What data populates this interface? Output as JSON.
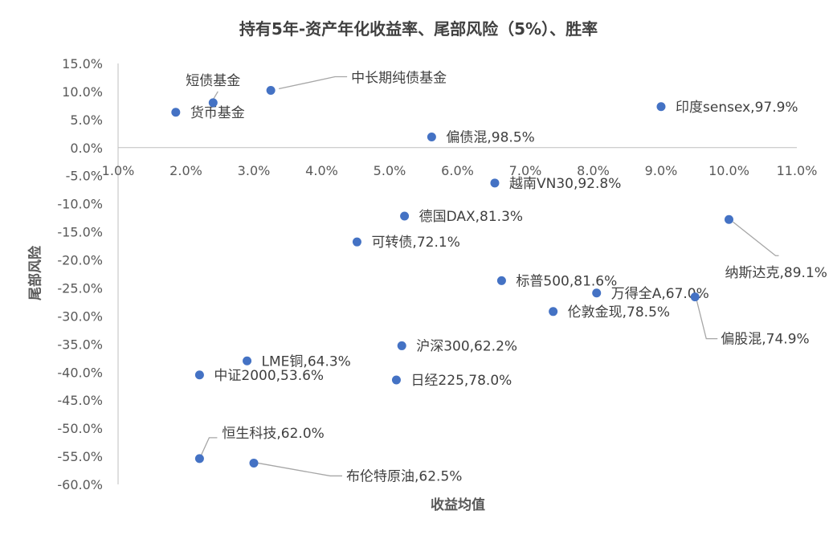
{
  "chart_data": {
    "type": "scatter",
    "title": "持有5年-资产年化收益率、尾部风险（5%）、胜率",
    "xlabel": "收益均值",
    "ylabel": "尾部风险",
    "xlim": [
      0.01,
      0.11
    ],
    "ylim": [
      -0.6,
      0.15
    ],
    "x_ticks": [
      0.01,
      0.02,
      0.03,
      0.04,
      0.05,
      0.06,
      0.07,
      0.08,
      0.09,
      0.1,
      0.11
    ],
    "x_tick_labels": [
      "1.0%",
      "2.0%",
      "3.0%",
      "4.0%",
      "5.0%",
      "6.0%",
      "7.0%",
      "8.0%",
      "9.0%",
      "10.0%",
      "11.0%"
    ],
    "y_ticks": [
      0.15,
      0.1,
      0.05,
      0.0,
      -0.05,
      -0.1,
      -0.15,
      -0.2,
      -0.25,
      -0.3,
      -0.35,
      -0.4,
      -0.45,
      -0.5,
      -0.55,
      -0.6
    ],
    "y_tick_labels": [
      "15.0%",
      "10.0%",
      "5.0%",
      "0.0%",
      "-5.0%",
      "-10.0%",
      "-15.0%",
      "-20.0%",
      "-25.0%",
      "-30.0%",
      "-35.0%",
      "-40.0%",
      "-45.0%",
      "-50.0%",
      "-55.0%",
      "-60.0%"
    ],
    "grid": false,
    "marker_color": "#4472C4",
    "points": [
      {
        "label": "货币基金",
        "x": 0.0185,
        "y": 0.063
      },
      {
        "label": "短债基金",
        "x": 0.024,
        "y": 0.08
      },
      {
        "label": "中长期纯债基金",
        "x": 0.0325,
        "y": 0.102
      },
      {
        "label": "印度sensex,97.9%",
        "x": 0.09,
        "y": 0.073
      },
      {
        "label": "偏债混,98.5%",
        "x": 0.0562,
        "y": 0.019
      },
      {
        "label": "越南VN30,92.8%",
        "x": 0.0655,
        "y": -0.063
      },
      {
        "label": "德国DAX,81.3%",
        "x": 0.0522,
        "y": -0.122
      },
      {
        "label": "纳斯达克,89.1%",
        "x": 0.1,
        "y": -0.128
      },
      {
        "label": "可转债,72.1%",
        "x": 0.0452,
        "y": -0.168
      },
      {
        "label": "标普500,81.6%",
        "x": 0.0665,
        "y": -0.237
      },
      {
        "label": "万得全A,67.0%",
        "x": 0.0805,
        "y": -0.259
      },
      {
        "label": "偏股混,74.9%",
        "x": 0.095,
        "y": -0.266
      },
      {
        "label": "伦敦金现,78.5%",
        "x": 0.0741,
        "y": -0.292
      },
      {
        "label": "沪深300,62.2%",
        "x": 0.0518,
        "y": -0.353
      },
      {
        "label": "LME铜,64.3%",
        "x": 0.029,
        "y": -0.38
      },
      {
        "label": "中证2000,53.6%",
        "x": 0.022,
        "y": -0.405
      },
      {
        "label": "日经225,78.0%",
        "x": 0.051,
        "y": -0.414
      },
      {
        "label": "恒生科技,62.0%",
        "x": 0.022,
        "y": -0.554
      },
      {
        "label": "布伦特原油,62.5%",
        "x": 0.03,
        "y": -0.562
      }
    ]
  }
}
